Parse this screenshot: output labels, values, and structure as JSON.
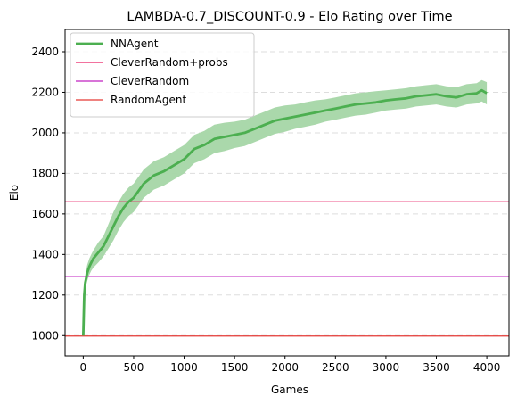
{
  "chart_data": {
    "type": "line",
    "title": "LAMBDA-0.7_DISCOUNT-0.9 - Elo Rating over Time",
    "xlabel": "Games",
    "ylabel": "Elo",
    "xlim": [
      -180,
      4220
    ],
    "ylim": [
      900,
      2510
    ],
    "xticks": [
      0,
      500,
      1000,
      1500,
      2000,
      2500,
      3000,
      3500,
      4000
    ],
    "yticks": [
      1000,
      1200,
      1400,
      1600,
      1800,
      2000,
      2200,
      2400
    ],
    "grid": "horizontal-dashed",
    "legend_position": "upper-left",
    "series": [
      {
        "name": "NNAgent",
        "color": "#4caf50",
        "band_color": "#a5d6a7",
        "x": [
          0,
          10,
          20,
          40,
          60,
          80,
          100,
          150,
          200,
          250,
          300,
          350,
          400,
          450,
          500,
          600,
          700,
          800,
          900,
          1000,
          1100,
          1200,
          1300,
          1400,
          1500,
          1600,
          1700,
          1800,
          1900,
          2000,
          2100,
          2200,
          2300,
          2400,
          2500,
          2600,
          2700,
          2800,
          2900,
          3000,
          3100,
          3200,
          3300,
          3400,
          3500,
          3600,
          3700,
          3800,
          3900,
          3950,
          4000
        ],
        "y": [
          1000,
          1200,
          1260,
          1310,
          1340,
          1360,
          1380,
          1410,
          1440,
          1490,
          1540,
          1590,
          1630,
          1660,
          1680,
          1750,
          1790,
          1810,
          1840,
          1870,
          1920,
          1940,
          1970,
          1980,
          1990,
          2000,
          2020,
          2040,
          2060,
          2070,
          2080,
          2090,
          2100,
          2110,
          2120,
          2130,
          2140,
          2145,
          2150,
          2160,
          2165,
          2170,
          2180,
          2185,
          2190,
          2180,
          2175,
          2190,
          2195,
          2210,
          2195
        ],
        "lower": [
          1000,
          1170,
          1220,
          1270,
          1300,
          1320,
          1335,
          1360,
          1390,
          1430,
          1470,
          1520,
          1560,
          1590,
          1610,
          1680,
          1720,
          1740,
          1770,
          1800,
          1850,
          1870,
          1900,
          1910,
          1925,
          1935,
          1955,
          1975,
          1995,
          2005,
          2020,
          2030,
          2040,
          2055,
          2065,
          2075,
          2085,
          2090,
          2100,
          2110,
          2115,
          2120,
          2130,
          2135,
          2140,
          2130,
          2125,
          2140,
          2145,
          2155,
          2140
        ],
        "upper": [
          1000,
          1230,
          1300,
          1350,
          1380,
          1400,
          1420,
          1460,
          1490,
          1550,
          1610,
          1660,
          1700,
          1730,
          1750,
          1820,
          1860,
          1880,
          1910,
          1940,
          1990,
          2010,
          2040,
          2050,
          2055,
          2065,
          2085,
          2105,
          2125,
          2135,
          2140,
          2150,
          2160,
          2165,
          2175,
          2185,
          2195,
          2200,
          2205,
          2210,
          2215,
          2220,
          2230,
          2235,
          2240,
          2230,
          2225,
          2240,
          2245,
          2260,
          2250
        ]
      },
      {
        "name": "CleverRandom+probs",
        "type": "hline",
        "y": 1660,
        "color": "#e91e63"
      },
      {
        "name": "CleverRandom",
        "type": "hline",
        "y": 1292,
        "color": "#c020c0"
      },
      {
        "name": "RandomAgent",
        "type": "hline",
        "y": 998,
        "color": "#e53935"
      }
    ]
  }
}
